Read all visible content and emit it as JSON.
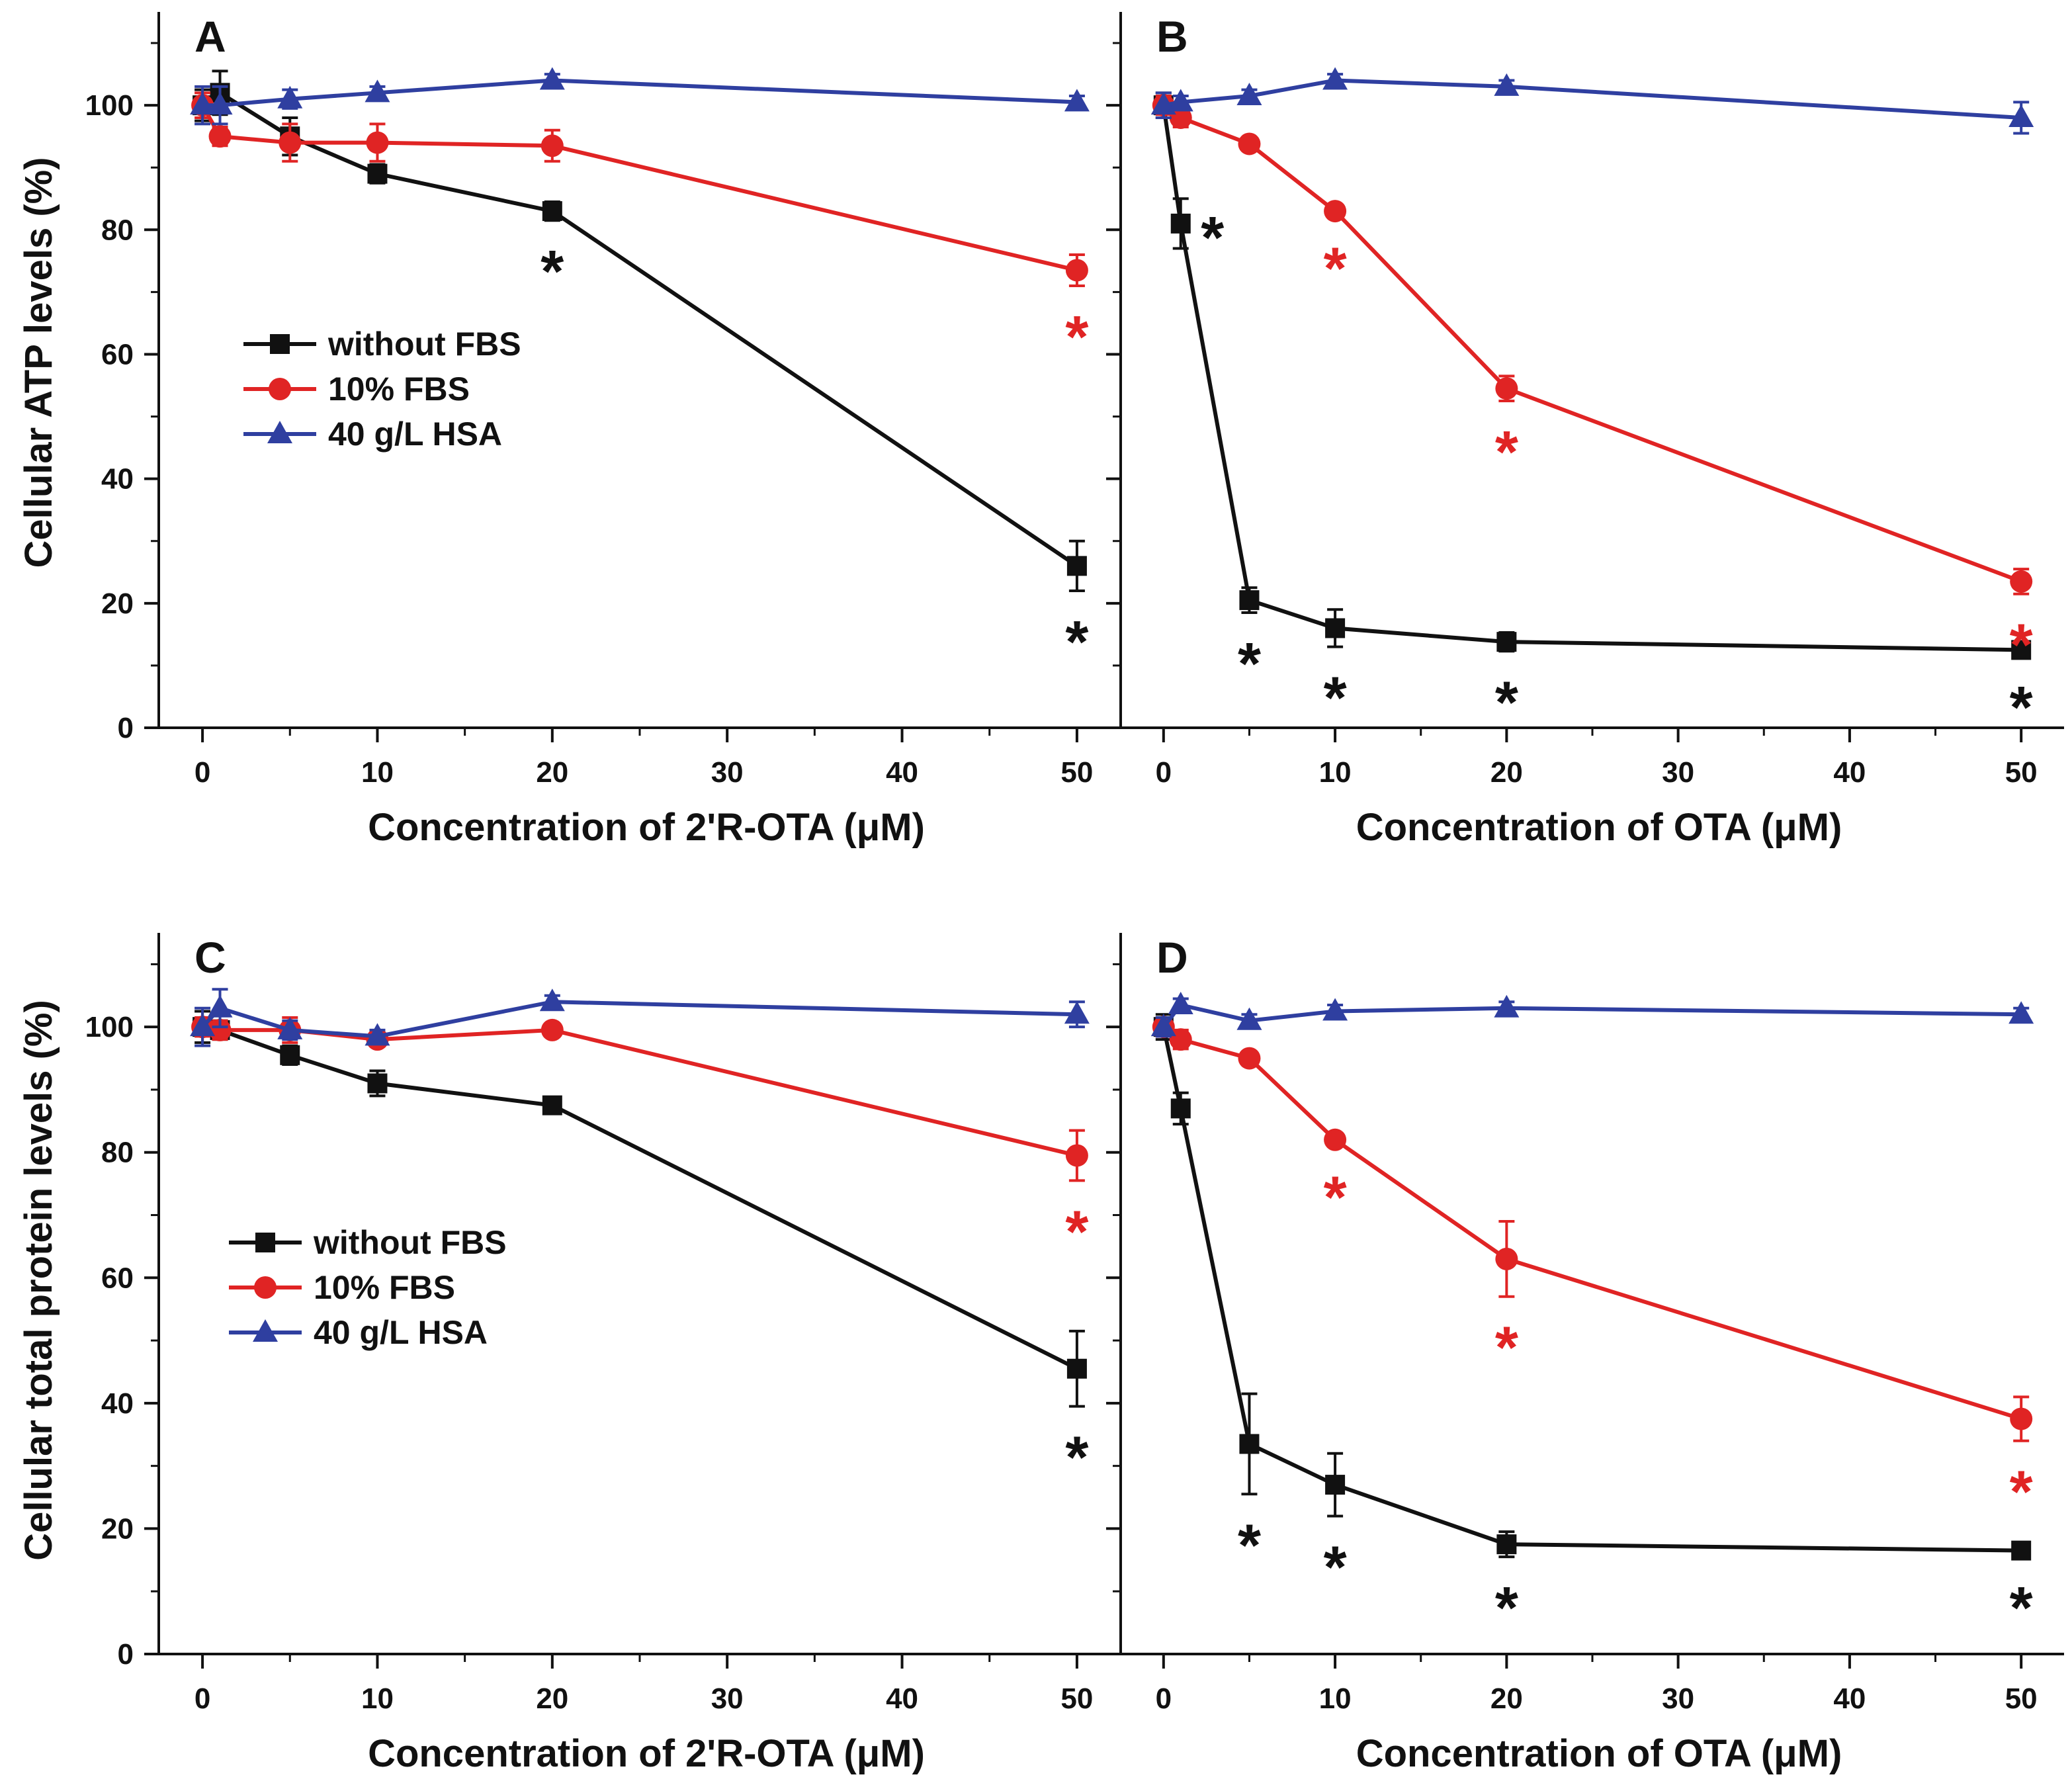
{
  "legend": {
    "entries": [
      {
        "label": "without FBS",
        "color": "#111111",
        "marker": "square"
      },
      {
        "label": "10% FBS",
        "color": "#e02424",
        "marker": "circle"
      },
      {
        "label": "40 g/L HSA",
        "color": "#2f3fa0",
        "marker": "triangle"
      }
    ]
  },
  "y_axis_labels": {
    "top": "Cellular ATP levels (%)",
    "bottom": "Cellular total protein levels (%)"
  },
  "chart_data": [
    {
      "panel": "A",
      "type": "line",
      "xlabel": "Concentration of 2'R-OTA (μM)",
      "ylabel": "Cellular ATP levels (%)",
      "xlim": [
        -2.5,
        52.5
      ],
      "ylim": [
        0,
        115
      ],
      "xticks": [
        0,
        10,
        20,
        30,
        40,
        50
      ],
      "yticks": [
        0,
        20,
        40,
        60,
        80,
        100
      ],
      "legend_position": "center-left",
      "series": [
        {
          "name": "without FBS",
          "x": [
            0,
            1,
            5,
            10,
            20,
            50
          ],
          "values": [
            100,
            102,
            95,
            89,
            83,
            26
          ],
          "err": [
            2.5,
            3.5,
            3,
            1.5,
            1.5,
            4
          ],
          "stars": [
            20,
            50
          ]
        },
        {
          "name": "10% FBS",
          "x": [
            0,
            1,
            5,
            10,
            20,
            50
          ],
          "values": [
            100,
            95,
            94,
            94,
            93.5,
            73.5
          ],
          "err": [
            2,
            1.5,
            3,
            3,
            2.5,
            2.5
          ],
          "stars": [
            50
          ]
        },
        {
          "name": "40 g/L HSA",
          "x": [
            0,
            1,
            5,
            10,
            20,
            50
          ],
          "values": [
            100,
            100,
            101,
            102,
            104,
            100.5
          ],
          "err": [
            3,
            3,
            1.5,
            1,
            1,
            1
          ],
          "stars": []
        }
      ]
    },
    {
      "panel": "B",
      "type": "line",
      "xlabel": "Concentration of OTA (μM)",
      "ylabel": "",
      "xlim": [
        -2.5,
        52.5
      ],
      "ylim": [
        0,
        115
      ],
      "xticks": [
        0,
        10,
        20,
        30,
        40,
        50
      ],
      "yticks": [
        0,
        20,
        40,
        60,
        80,
        100
      ],
      "legend_position": "",
      "series": [
        {
          "name": "without FBS",
          "x": [
            0,
            1,
            5,
            10,
            20,
            50
          ],
          "values": [
            100,
            81,
            20.5,
            16,
            13.8,
            12.5
          ],
          "err": [
            2,
            4,
            2,
            3,
            1.5,
            1
          ],
          "stars": [
            1,
            5,
            10,
            20,
            50
          ]
        },
        {
          "name": "10% FBS",
          "x": [
            0,
            1,
            5,
            10,
            20,
            50
          ],
          "values": [
            100,
            98,
            93.8,
            83,
            54.5,
            23.5
          ],
          "err": [
            1.5,
            1.5,
            1,
            1,
            2,
            2
          ],
          "stars": [
            10,
            20,
            50
          ]
        },
        {
          "name": "40 g/L HSA",
          "x": [
            0,
            1,
            5,
            10,
            20,
            50
          ],
          "values": [
            100,
            100.5,
            101.5,
            104,
            103,
            98
          ],
          "err": [
            2,
            1,
            1,
            1,
            1,
            2.5
          ],
          "stars": []
        }
      ]
    },
    {
      "panel": "C",
      "type": "line",
      "xlabel": "Concentration of 2'R-OTA (μM)",
      "ylabel": "Cellular total protein levels (%)",
      "xlim": [
        -2.5,
        52.5
      ],
      "ylim": [
        0,
        115
      ],
      "xticks": [
        0,
        10,
        20,
        30,
        40,
        50
      ],
      "yticks": [
        0,
        20,
        40,
        60,
        80,
        100
      ],
      "legend_position": "center-left",
      "series": [
        {
          "name": "without FBS",
          "x": [
            0,
            1,
            5,
            10,
            20,
            50
          ],
          "values": [
            100,
            99.5,
            95.5,
            91,
            87.5,
            45.5
          ],
          "err": [
            2.5,
            1.5,
            1.5,
            2,
            1,
            6
          ],
          "stars": [
            50
          ]
        },
        {
          "name": "10% FBS",
          "x": [
            0,
            1,
            5,
            10,
            20,
            50
          ],
          "values": [
            100,
            99.5,
            99.5,
            98,
            99.5,
            79.5
          ],
          "err": [
            1.5,
            1.5,
            2,
            1,
            1,
            4
          ],
          "stars": [
            50
          ]
        },
        {
          "name": "40 g/L HSA",
          "x": [
            0,
            1,
            5,
            10,
            20,
            50
          ],
          "values": [
            100,
            103,
            99.5,
            98.5,
            104,
            102
          ],
          "err": [
            3,
            3,
            1.5,
            1,
            1,
            2
          ],
          "stars": []
        }
      ]
    },
    {
      "panel": "D",
      "type": "line",
      "xlabel": "Concentration of OTA (μM)",
      "ylabel": "",
      "xlim": [
        -2.5,
        52.5
      ],
      "ylim": [
        0,
        115
      ],
      "xticks": [
        0,
        10,
        20,
        30,
        40,
        50
      ],
      "yticks": [
        0,
        20,
        40,
        60,
        80,
        100
      ],
      "legend_position": "",
      "series": [
        {
          "name": "without FBS",
          "x": [
            0,
            1,
            5,
            10,
            20,
            50
          ],
          "values": [
            100,
            87,
            33.5,
            27,
            17.5,
            16.5
          ],
          "err": [
            2,
            2.5,
            8,
            5,
            2,
            1
          ],
          "stars": [
            5,
            10,
            20,
            50
          ]
        },
        {
          "name": "10% FBS",
          "x": [
            0,
            1,
            5,
            10,
            20,
            50
          ],
          "values": [
            100,
            98,
            95,
            82,
            63,
            37.5
          ],
          "err": [
            1.5,
            1.5,
            1,
            1,
            6,
            3.5
          ],
          "stars": [
            10,
            20,
            50
          ]
        },
        {
          "name": "40 g/L HSA",
          "x": [
            0,
            1,
            5,
            10,
            20,
            50
          ],
          "values": [
            100,
            103.5,
            101,
            102.5,
            103,
            102
          ],
          "err": [
            1.5,
            1,
            1,
            1,
            1,
            1
          ],
          "stars": []
        }
      ]
    }
  ]
}
